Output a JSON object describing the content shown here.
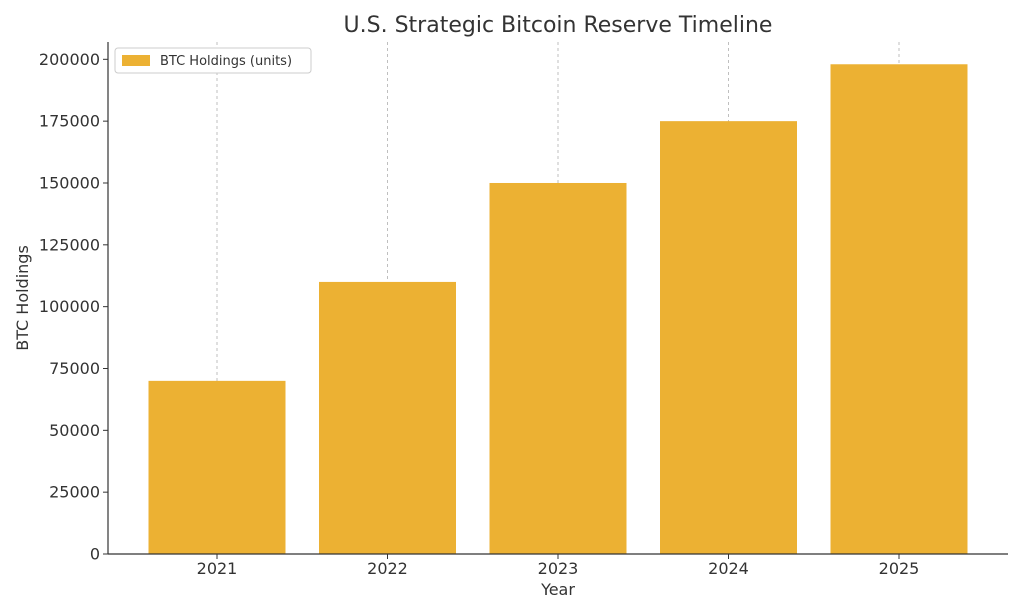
{
  "chart_data": {
    "type": "bar",
    "title": "U.S. Strategic Bitcoin Reserve Timeline",
    "xlabel": "Year",
    "ylabel": "BTC Holdings",
    "categories": [
      "2021",
      "2022",
      "2023",
      "2024",
      "2025"
    ],
    "series": [
      {
        "name": "BTC Holdings (units)",
        "values": [
          70000,
          110000,
          150000,
          175000,
          198000
        ],
        "color": "#ECB133"
      }
    ],
    "ylim": [
      0,
      207000
    ],
    "yticks": [
      0,
      25000,
      50000,
      75000,
      100000,
      125000,
      150000,
      175000,
      200000
    ],
    "grid": "vertical dashed",
    "legend": "top-left"
  }
}
